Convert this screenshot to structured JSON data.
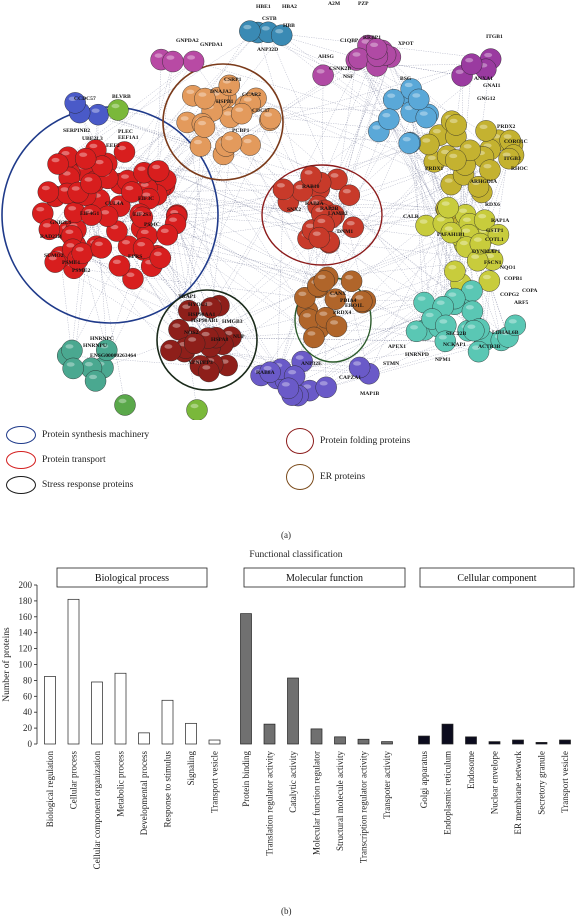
{
  "network": {
    "node_labels": {
      "top": [
        "HBE1",
        "HBA2",
        "CSTB",
        "HBB",
        "A2M",
        "PZP",
        "GNPDA2",
        "GNPDA1",
        "ANP32D",
        "RRBP1",
        "AHSG",
        "C1QBP",
        "XPOT",
        "CSNK2B",
        "NSF",
        "ITGB1",
        "CCDC57",
        "BLVRB",
        "BSG",
        "ANXA1",
        "GNAI1",
        "GNG12",
        "SERPINB2",
        "PLEC"
      ],
      "left": [
        "UBE2L3",
        "EEF2",
        "EEF1A1",
        "RAD23B",
        "SUMO2",
        "PSME1",
        "PSME2",
        "GNB2L1",
        "EIF4G1",
        "CUL4A",
        "EIF3C",
        "EIF2S3",
        "PSMC",
        "EPRS"
      ],
      "center": [
        "DNAJA2",
        "CSRP1",
        "CCAR2",
        "HSPB1",
        "CDC37",
        "PCBP1",
        "RAB10",
        "RAB2A",
        "RAB2B",
        "SNX2",
        "LAMB2",
        "DNM1",
        "TRAP1",
        "HYOU1",
        "HSP90AA1",
        "HSP90AB1",
        "NOS2",
        "HSPA8",
        "HMGB3",
        "NUP",
        "CANX",
        "PDIA4",
        "PRDX4",
        "ERO1L"
      ],
      "right": [
        "CALR",
        "PRDX2",
        "CORO1C",
        "ITGB3",
        "RHOC",
        "PRDX1",
        "ARHGDIA",
        "RDX6",
        "RAP1A",
        "GSTP1",
        "COTL1",
        "CAP1",
        "FSCN1",
        "PAFAH1B1",
        "DYNLL1",
        "NQO1",
        "COPB1",
        "COPA",
        "COPG2",
        "ARF5",
        "SEC22B",
        "LDHAL6B",
        "ACTR3B",
        "NCKAP1",
        "NPM1",
        "STMN",
        "CAPZA1",
        "MAP1B",
        "APEX1",
        "HNRNPD",
        "HNRNPC",
        "HNRNPU",
        "ENSG00000263464",
        "XPNPEP3",
        "RAB8A",
        "ANP32E"
      ]
    }
  },
  "legend": {
    "items": [
      {
        "label": "Protein synthesis machinery",
        "color": "#1f3a8a"
      },
      {
        "label": "Protein transport",
        "color": "#d42020"
      },
      {
        "label": "Stress response proteins",
        "color": "#1a1a1a"
      },
      {
        "label": "Protein folding proteins",
        "color": "#8b1a1a"
      },
      {
        "label": "ER proteins",
        "color": "#7a4a1a"
      }
    ]
  },
  "panel_a_label": "(a)",
  "panel_b_label": "(b)",
  "chart_data": {
    "type": "bar",
    "title": "Functional classification",
    "ylabel": "Number of proteins",
    "ylim": [
      0,
      200
    ],
    "yticks": [
      0,
      20,
      40,
      60,
      80,
      100,
      120,
      140,
      160,
      180,
      200
    ],
    "groups": [
      {
        "name": "Biological process",
        "fill": "#ffffff",
        "categories": [
          "Biological regulation",
          "Cellular process",
          "Cellular component organization",
          "Metabolic process",
          "Developmental process",
          "Response to stimulus",
          "Signaling",
          "Transport vesicle"
        ],
        "values": [
          85,
          182,
          78,
          89,
          14,
          55,
          26,
          5
        ]
      },
      {
        "name": "Molecular function",
        "fill": "#707070",
        "categories": [
          "Protein binding",
          "Translation regulator activity",
          "Catalytic activity",
          "Molecular function regulator",
          "Structural molecule activity",
          "Transcription regulator activity",
          "Transpoter activity"
        ],
        "values": [
          164,
          25,
          83,
          19,
          9,
          6,
          3
        ]
      },
      {
        "name": "Cellular component",
        "fill": "#0c0c1e",
        "categories": [
          "Golgi apparatus",
          "Endoplasmic reticulum",
          "Endosome",
          "Nuclear envelope",
          "ER membrane network",
          "Secretory granule",
          "Transport vesicle"
        ],
        "values": [
          10,
          25,
          9,
          3,
          5,
          2,
          5
        ]
      }
    ]
  }
}
